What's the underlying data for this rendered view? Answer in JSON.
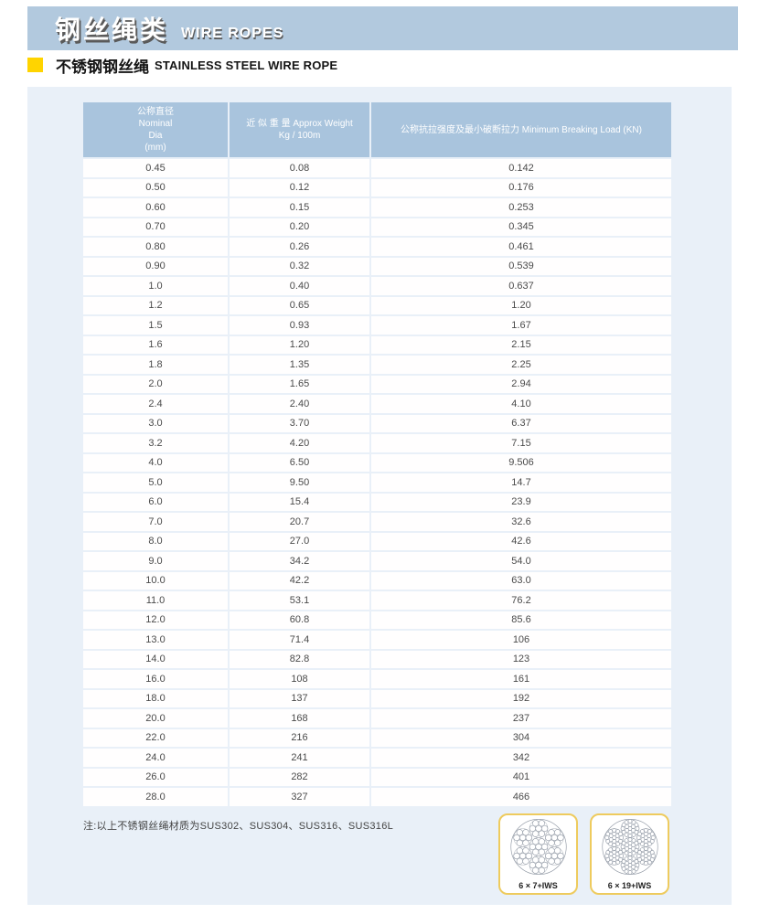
{
  "header": {
    "title_zh": "钢丝绳类",
    "title_en": "WIRE ROPES"
  },
  "section": {
    "subtitle_zh": "不锈钢钢丝绳",
    "subtitle_en": "STAINLESS STEEL WIRE ROPE"
  },
  "table": {
    "header": {
      "col1_lines": [
        "公称直径",
        "Nominal",
        "Dia",
        "(mm)"
      ],
      "col2_lines": [
        "近 似 重 量 Approx Weight",
        "Kg / 100m"
      ],
      "col3_lines": [
        "公称抗拉强度及最小破断拉力 Minimum Breaking Load (KN)"
      ]
    },
    "rows": [
      [
        "0.45",
        "0.08",
        "0.142"
      ],
      [
        "0.50",
        "0.12",
        "0.176"
      ],
      [
        "0.60",
        "0.15",
        "0.253"
      ],
      [
        "0.70",
        "0.20",
        "0.345"
      ],
      [
        "0.80",
        "0.26",
        "0.461"
      ],
      [
        "0.90",
        "0.32",
        "0.539"
      ],
      [
        "1.0",
        "0.40",
        "0.637"
      ],
      [
        "1.2",
        "0.65",
        "1.20"
      ],
      [
        "1.5",
        "0.93",
        "1.67"
      ],
      [
        "1.6",
        "1.20",
        "2.15"
      ],
      [
        "1.8",
        "1.35",
        "2.25"
      ],
      [
        "2.0",
        "1.65",
        "2.94"
      ],
      [
        "2.4",
        "2.40",
        "4.10"
      ],
      [
        "3.0",
        "3.70",
        "6.37"
      ],
      [
        "3.2",
        "4.20",
        "7.15"
      ],
      [
        "4.0",
        "6.50",
        "9.506"
      ],
      [
        "5.0",
        "9.50",
        "14.7"
      ],
      [
        "6.0",
        "15.4",
        "23.9"
      ],
      [
        "7.0",
        "20.7",
        "32.6"
      ],
      [
        "8.0",
        "27.0",
        "42.6"
      ],
      [
        "9.0",
        "34.2",
        "54.0"
      ],
      [
        "10.0",
        "42.2",
        "63.0"
      ],
      [
        "11.0",
        "53.1",
        "76.2"
      ],
      [
        "12.0",
        "60.8",
        "85.6"
      ],
      [
        "13.0",
        "71.4",
        "106"
      ],
      [
        "14.0",
        "82.8",
        "123"
      ],
      [
        "16.0",
        "108",
        "161"
      ],
      [
        "18.0",
        "137",
        "192"
      ],
      [
        "20.0",
        "168",
        "237"
      ],
      [
        "22.0",
        "216",
        "304"
      ],
      [
        "24.0",
        "241",
        "342"
      ],
      [
        "26.0",
        "282",
        "401"
      ],
      [
        "28.0",
        "327",
        "466"
      ]
    ]
  },
  "note": "注:以上不锈钢丝绳材质为SUS302、SUS304、SUS316、SUS316L",
  "diagrams": [
    {
      "label": "6 × 7+IWS",
      "wires_per_strand": 7
    },
    {
      "label": "6 × 19+IWS",
      "wires_per_strand": 19
    }
  ],
  "colors": {
    "header_bar": "#b2c9de",
    "table_header_bg": "#a9c4dd",
    "content_bg": "#e9f0f8",
    "accent_yellow": "#ffd400",
    "card_border": "#eecb5e"
  }
}
